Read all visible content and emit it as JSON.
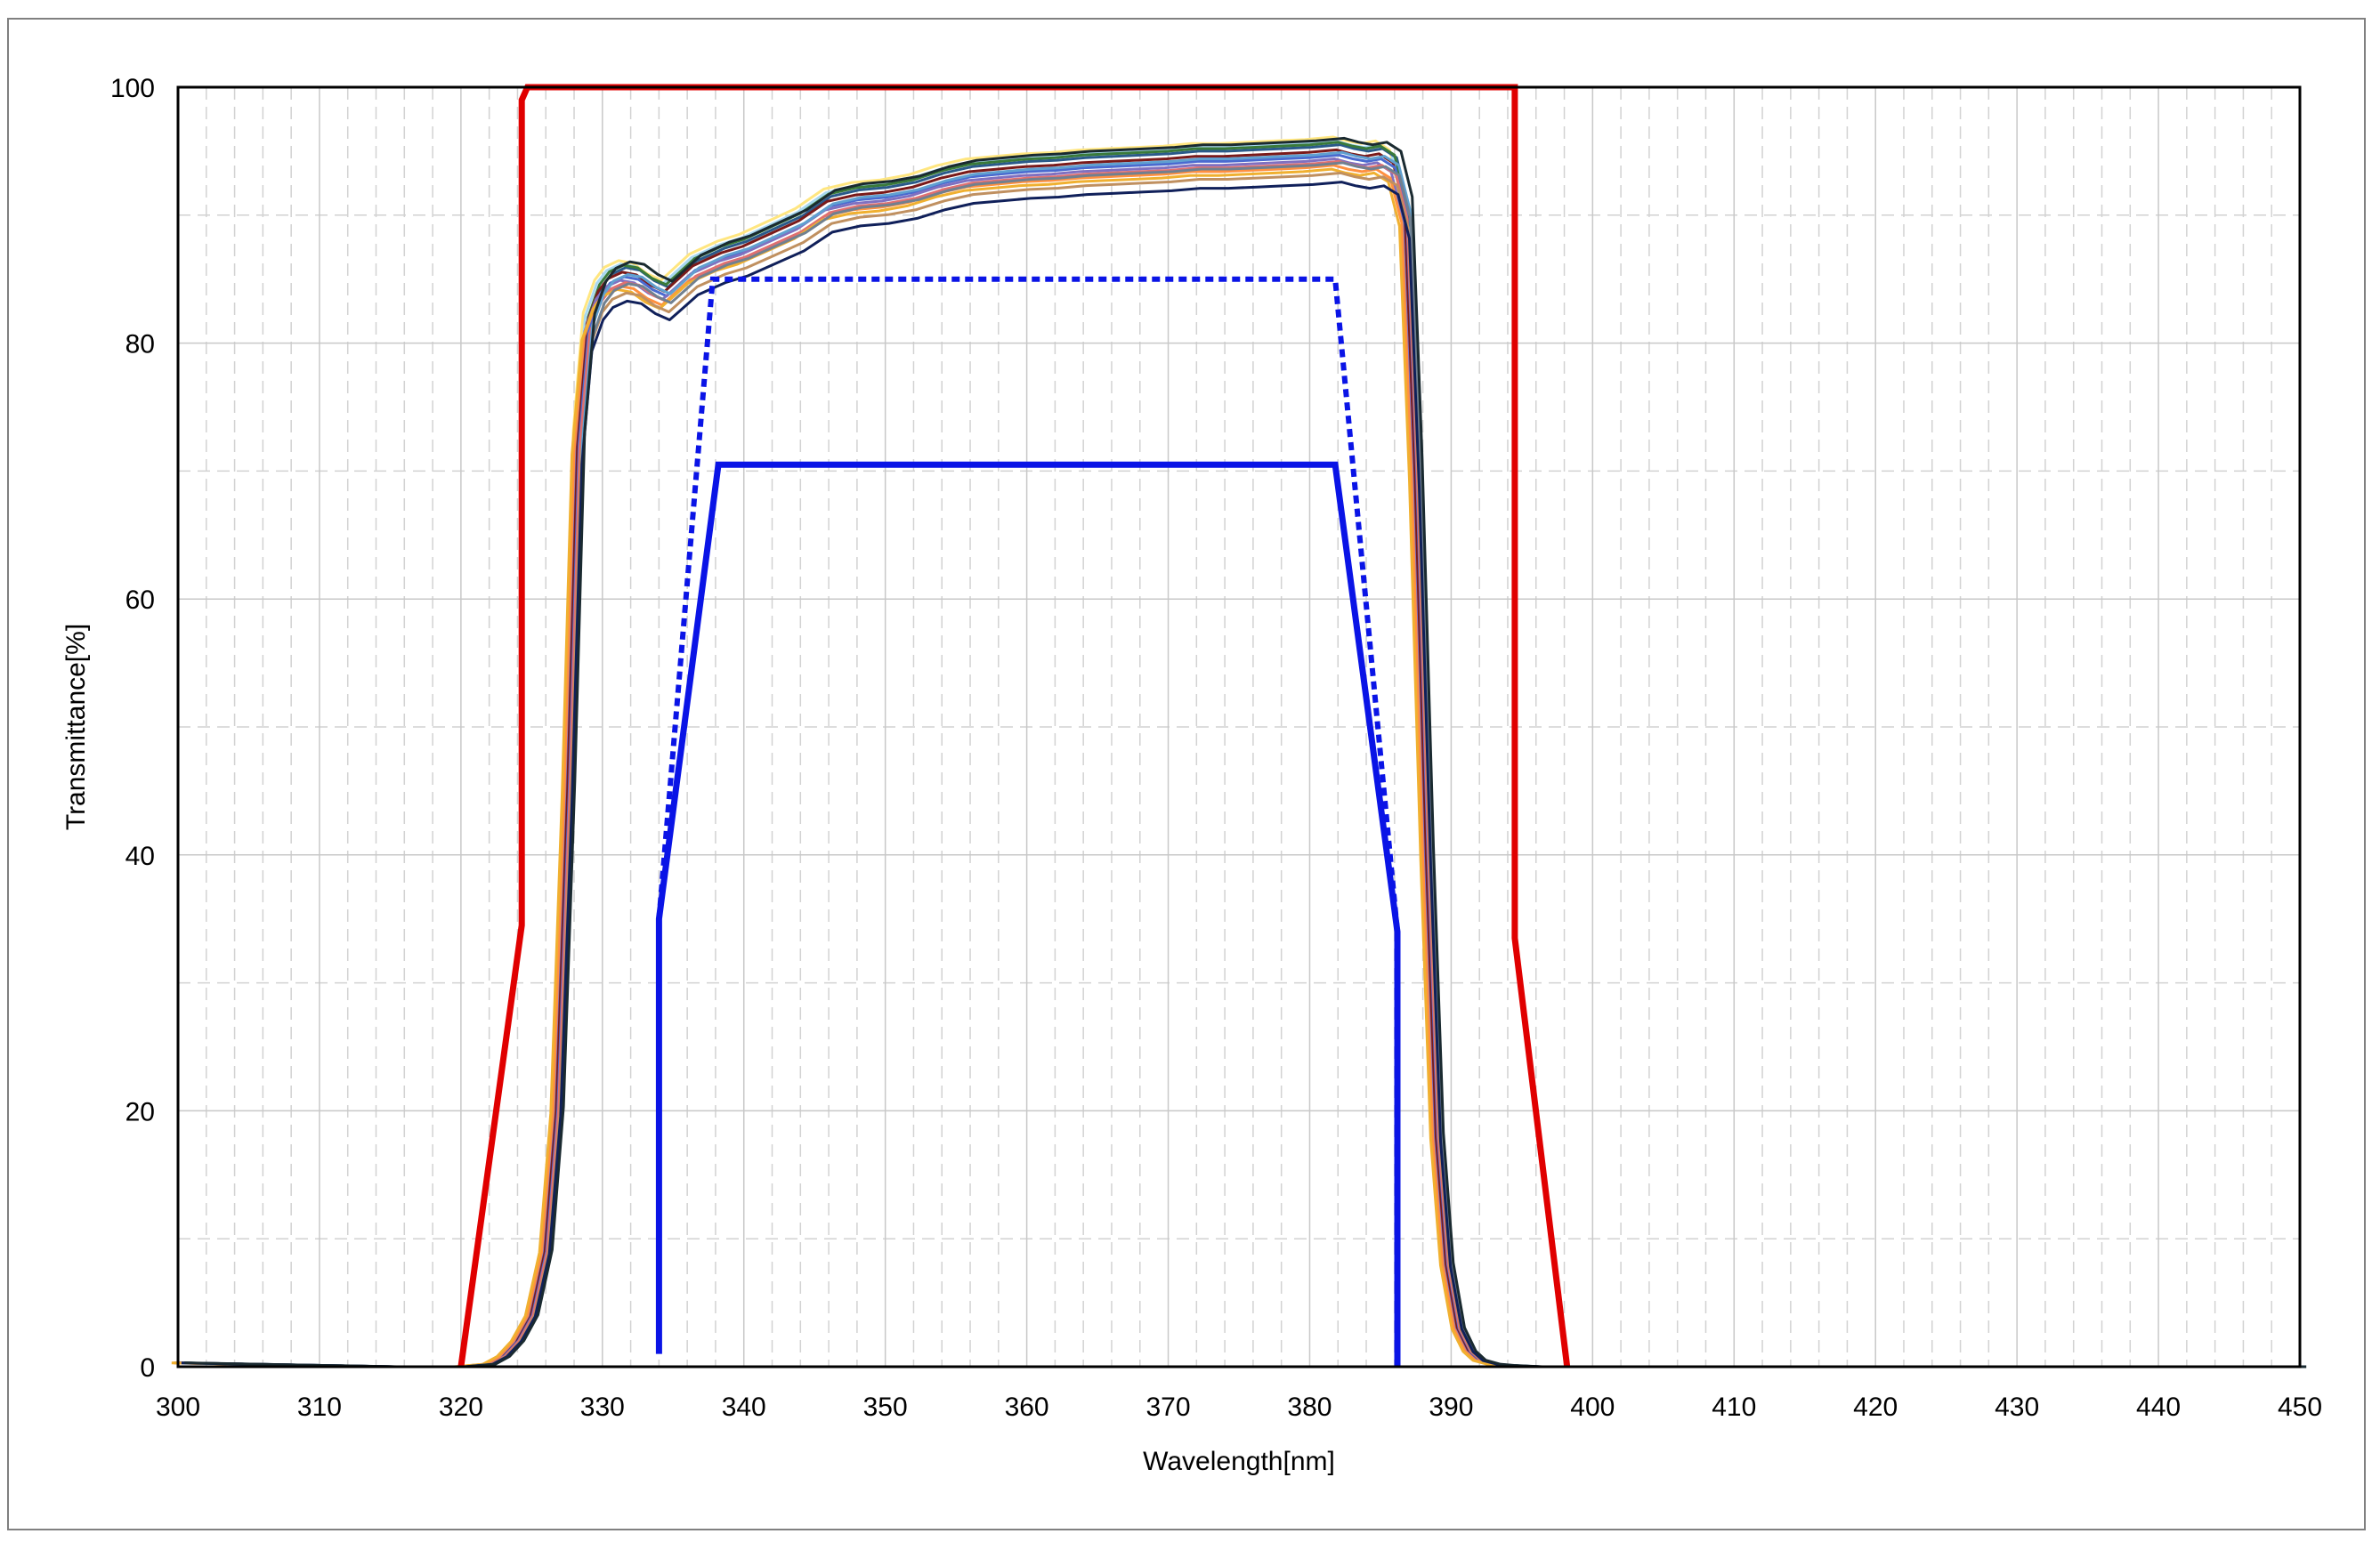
{
  "chart_data": {
    "type": "line",
    "title": "",
    "xlabel": "Wavelength[nm]",
    "ylabel": "Transmittance[%]",
    "xlim": [
      300,
      450
    ],
    "ylim": [
      0,
      100
    ],
    "x_ticks": [
      300,
      310,
      320,
      330,
      340,
      350,
      360,
      370,
      380,
      390,
      400,
      410,
      420,
      430,
      440,
      450
    ],
    "y_ticks": [
      0,
      20,
      40,
      60,
      80,
      100
    ],
    "grid": {
      "major": true,
      "minor_x_step": 2,
      "minor_y_step": 10
    },
    "legend": "none",
    "colors": {
      "red_limit": "#e00000",
      "blue_limit": "#0a14e6",
      "grid_major": "#c8c8c8",
      "grid_minor": "#d2d2d2"
    },
    "limit_lines": [
      {
        "style": "solid",
        "color": "#e00000",
        "points": [
          [
            320,
            0
          ],
          [
            324.3,
            34.5
          ],
          [
            324.3,
            99
          ],
          [
            324.7,
            100
          ],
          [
            394.5,
            100
          ],
          [
            394.5,
            33.5
          ],
          [
            398.2,
            0
          ]
        ]
      },
      {
        "style": "dotted",
        "color": "#0a14e6",
        "points": [
          [
            334,
            35
          ],
          [
            337.8,
            85
          ],
          [
            381.8,
            85
          ],
          [
            386.2,
            34
          ]
        ]
      },
      {
        "style": "solid",
        "color": "#0a14e6",
        "points": [
          [
            334,
            1
          ],
          [
            334,
            35
          ],
          [
            338.2,
            70.5
          ],
          [
            381.8,
            70.5
          ],
          [
            386.2,
            34
          ],
          [
            386.2,
            0
          ]
        ]
      }
    ],
    "measured_profile": {
      "x": [
        300,
        315,
        320,
        322,
        323,
        324,
        325,
        326,
        326.8,
        327.6,
        328.3,
        329,
        329.8,
        330.5,
        331.5,
        332.5,
        333.5,
        334.5,
        335.5,
        336.5,
        337.5,
        338.5,
        340,
        342,
        344,
        346,
        348,
        350,
        352,
        354,
        356,
        358,
        360,
        362,
        364,
        366,
        368,
        370,
        372,
        374,
        376,
        378,
        380,
        382,
        383,
        384,
        385,
        386,
        386.8,
        387.5,
        388.3,
        389,
        389.7,
        390.5,
        391.3,
        392,
        393,
        394,
        396,
        400,
        450
      ],
      "y": [
        0.3,
        0,
        0,
        0.2,
        0.8,
        2,
        4,
        9,
        20,
        45,
        72,
        81,
        83.5,
        84.5,
        85,
        84.8,
        84,
        83.5,
        84.5,
        85.5,
        86,
        86.5,
        87,
        88,
        89,
        90.5,
        91,
        91.2,
        91.6,
        92.3,
        92.8,
        93,
        93.2,
        93.3,
        93.5,
        93.6,
        93.7,
        93.8,
        94,
        94,
        94.1,
        94.2,
        94.3,
        94.5,
        94.2,
        94,
        94.2,
        93.5,
        90,
        70,
        40,
        18,
        8,
        3,
        1.2,
        0.5,
        0.2,
        0.1,
        0,
        0,
        0
      ]
    },
    "measured_series": [
      {
        "color": "#ffe680",
        "offset": 1.6,
        "shift": -0.35
      },
      {
        "color": "#a8d8f0",
        "offset": 1.3,
        "shift": -0.2
      },
      {
        "color": "#2a5a8a",
        "offset": 1.0,
        "shift": 0.15
      },
      {
        "color": "#3a7a3a",
        "offset": 1.2,
        "shift": 0.0
      },
      {
        "color": "#7a1a1a",
        "offset": 0.6,
        "shift": -0.1
      },
      {
        "color": "#4a6ad0",
        "offset": 0.2,
        "shift": 0.05
      },
      {
        "color": "#8070c0",
        "offset": -0.1,
        "shift": -0.25
      },
      {
        "color": "#ff9040",
        "offset": -0.6,
        "shift": -0.3
      },
      {
        "color": "#e07070",
        "offset": -0.3,
        "shift": 0.1
      },
      {
        "color": "#f0b030",
        "offset": -0.9,
        "shift": -0.45
      },
      {
        "color": "#c09060",
        "offset": -1.2,
        "shift": 0.2
      },
      {
        "color": "#60a0d0",
        "offset": 0.4,
        "shift": 0.3
      },
      {
        "color": "#708090",
        "offset": -0.4,
        "shift": 0.35
      },
      {
        "color": "#10205a",
        "offset": -1.9,
        "shift": 0.25
      },
      {
        "color": "#1a2a30",
        "offset": 1.5,
        "shift": 0.45
      }
    ]
  }
}
